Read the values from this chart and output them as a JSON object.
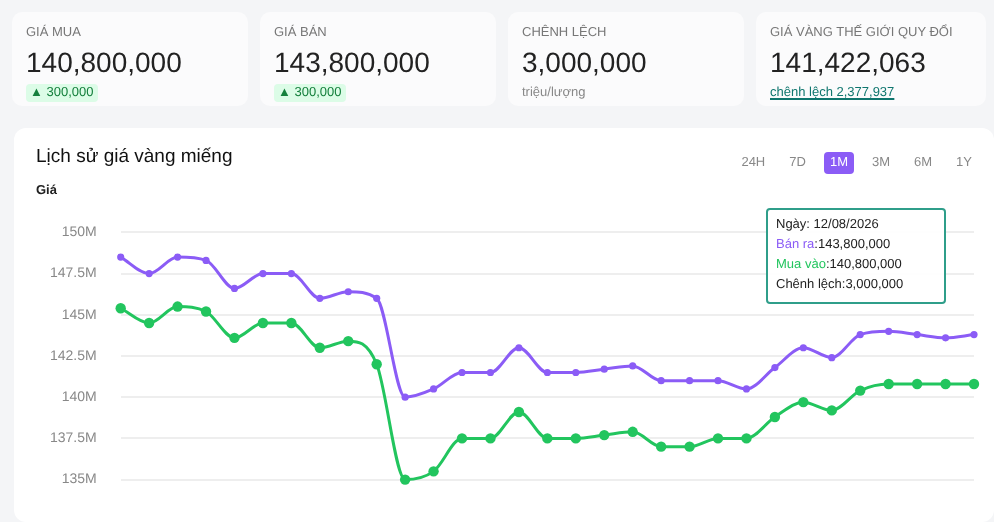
{
  "chart_data": [
    {
      "type": "other",
      "title": "GIÁ MUA",
      "annotations": [
        "140,800,000",
        "▲ 300,000"
      ]
    },
    {
      "type": "other",
      "title": "GIÁ BÁN",
      "annotations": [
        "143,800,000",
        "▲ 300,000"
      ]
    },
    {
      "type": "other",
      "title": "CHÊNH LỆCH",
      "annotations": [
        "3,000,000",
        "triệu/lượng"
      ]
    },
    {
      "type": "other",
      "title": "GIÁ VÀNG THẾ GIỚI QUY ĐỔI",
      "annotations": [
        "141,422,063",
        "chênh lệch 2,377,937"
      ]
    },
    {
      "type": "line",
      "title": "Lịch sử giá vàng miếng",
      "ylabel": "Giá",
      "categories": [
        null,
        null,
        null,
        null,
        null,
        null,
        null,
        null,
        null,
        null,
        null,
        null,
        null,
        null,
        null,
        null,
        null,
        null,
        null,
        null,
        null,
        null,
        null,
        null,
        null,
        null,
        null,
        null,
        null,
        null,
        null
      ],
      "series": [
        {
          "name": "Bán ra",
          "color": "#8b5cf6",
          "values": [
            148.5,
            147.5,
            148.5,
            148.3,
            146.6,
            147.5,
            147.5,
            146.0,
            146.4,
            146.0,
            140.0,
            140.5,
            141.5,
            141.5,
            143.0,
            141.5,
            141.5,
            141.7,
            141.9,
            141.0,
            141.0,
            141.0,
            140.5,
            141.8,
            143.0,
            142.4,
            143.8,
            144.0,
            143.8,
            143.6,
            143.8
          ]
        },
        {
          "name": "Mua vào",
          "color": "#22c55e",
          "values": [
            145.4,
            144.5,
            145.5,
            145.2,
            143.6,
            144.5,
            144.5,
            143.0,
            143.4,
            142.0,
            135.0,
            135.5,
            137.5,
            137.5,
            139.1,
            137.5,
            137.5,
            137.7,
            137.9,
            137.0,
            137.0,
            137.5,
            137.5,
            138.8,
            139.7,
            139.2,
            140.4,
            140.8,
            140.8,
            140.8,
            140.8
          ]
        }
      ],
      "ylim": [
        135,
        150
      ],
      "yticks": [
        {
          "value": 135,
          "label": "135M"
        },
        {
          "value": 137.5,
          "label": "137.5M"
        },
        {
          "value": 140,
          "label": "140M"
        },
        {
          "value": 142.5,
          "label": "142.5M"
        },
        {
          "value": 145,
          "label": "145M"
        },
        {
          "value": 147.5,
          "label": "147.5M"
        },
        {
          "value": 150,
          "label": "150M"
        }
      ],
      "grid": "y",
      "marker": "circle",
      "legend": false,
      "tick_labels": "y",
      "annotations": [
        "24H",
        "7D",
        "1M",
        "3M",
        "6M",
        "1Y",
        "Ngày: 12/08/2026",
        ":143,800,000",
        ":140,800,000",
        "Chênh lệch:3,000,000"
      ]
    }
  ]
}
